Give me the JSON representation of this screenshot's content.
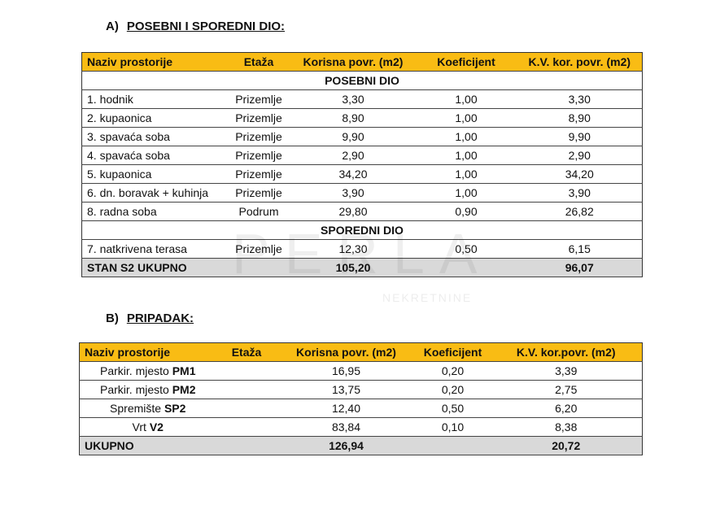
{
  "section_a": {
    "letter": "A)",
    "title": "POSEBNI I SPOREDNI DIO:"
  },
  "section_b": {
    "letter": "B)",
    "title": "PRIPADAK:"
  },
  "table_a": {
    "headers": [
      "Naziv prostorije",
      "Etaža",
      "Korisna povr. (m2)",
      "Koeficijent",
      "K.V. kor. povr. (m2)"
    ],
    "group1": "POSEBNI DIO",
    "rows1": [
      [
        "1. hodnik",
        "Prizemlje",
        "3,30",
        "1,00",
        "3,30"
      ],
      [
        "2. kupaonica",
        "Prizemlje",
        "8,90",
        "1,00",
        "8,90"
      ],
      [
        "3. spavaća soba",
        "Prizemlje",
        "9,90",
        "1,00",
        "9,90"
      ],
      [
        "4. spavaća soba",
        "Prizemlje",
        "2,90",
        "1,00",
        "2,90"
      ],
      [
        "5. kupaonica",
        "Prizemlje",
        "34,20",
        "1,00",
        "34,20"
      ],
      [
        "6. dn. boravak + kuhinja",
        "Prizemlje",
        "3,90",
        "1,00",
        "3,90"
      ],
      [
        "8. radna soba",
        "Podrum",
        "29,80",
        "0,90",
        "26,82"
      ]
    ],
    "group2": "SPOREDNI DIO",
    "rows2": [
      [
        "7. natkrivena terasa",
        "Prizemlje",
        "12,30",
        "0,50",
        "6,15"
      ]
    ],
    "total": {
      "label": "STAN S2 UKUPNO",
      "korisna": "105,20",
      "kv": "96,07"
    }
  },
  "table_b": {
    "headers": [
      "Naziv prostorije",
      "Etaža",
      "Korisna povr. (m2)",
      "Koeficijent",
      "K.V. kor.povr. (m2)"
    ],
    "rows": [
      {
        "name": "Parkir. mjesto ",
        "code": "PM1",
        "korisna": "16,95",
        "koef": "0,20",
        "kv": "3,39"
      },
      {
        "name": "Parkir. mjesto ",
        "code": "PM2",
        "korisna": "13,75",
        "koef": "0,20",
        "kv": "2,75"
      },
      {
        "name": "Spremište ",
        "code": "SP2",
        "korisna": "12,40",
        "koef": "0,50",
        "kv": "6,20"
      },
      {
        "name": "Vrt ",
        "code": "V2",
        "korisna": "83,84",
        "koef": "0,10",
        "kv": "8,38"
      }
    ],
    "total": {
      "label": "UKUPNO",
      "korisna": "126,94",
      "kv": "20,72"
    }
  },
  "watermark": {
    "brand": "PERLA",
    "sub": "NEKRETNINE"
  },
  "colors": {
    "header": "#f9bc14",
    "total": "#d9d9d9"
  }
}
